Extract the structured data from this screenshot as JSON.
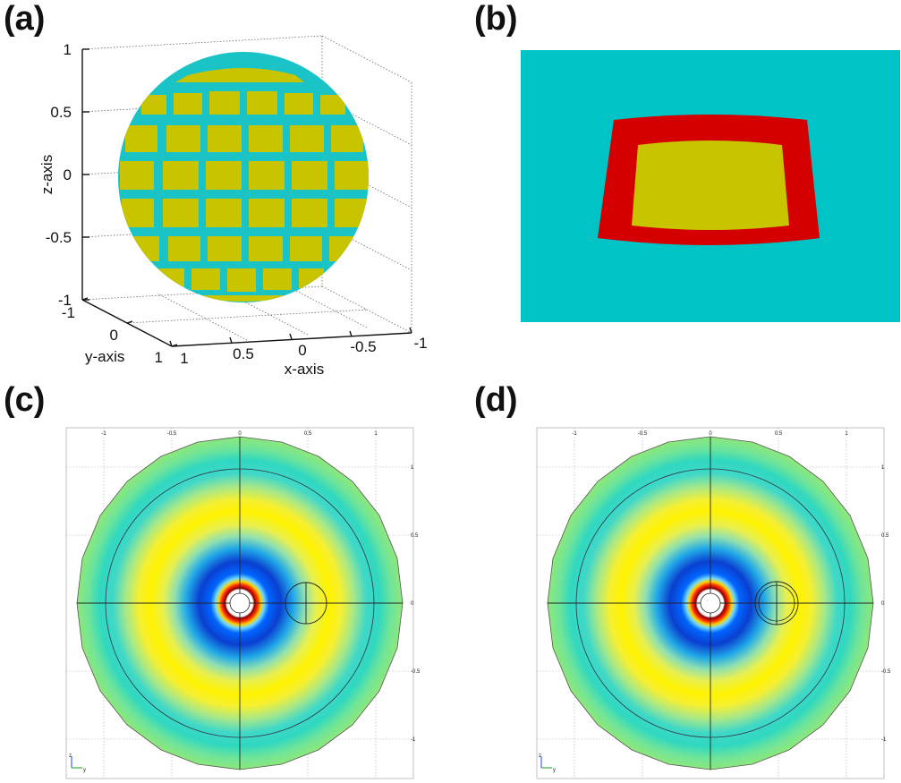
{
  "panels": {
    "a": {
      "label": "(a)",
      "z_axis": {
        "title": "z-axis",
        "ticks": [
          "1",
          "0.5",
          "0",
          "-0.5",
          "-1"
        ]
      },
      "y_axis": {
        "title": "y-axis",
        "ticks": [
          "-1",
          "0",
          "1"
        ]
      },
      "x_axis": {
        "title": "x-axis",
        "ticks": [
          "1",
          "0.5",
          "0",
          "-0.5",
          "-1"
        ]
      },
      "colors": {
        "surface": "#c8c400",
        "grid_band": "#19c3c6"
      }
    },
    "b": {
      "label": "(b)",
      "colors": {
        "background": "#00c3c6",
        "frame": "#d40000",
        "patch": "#c8c400"
      }
    },
    "c": {
      "label": "(c)",
      "top_ticks": [
        "-1",
        "-0.5",
        "0",
        "0.5",
        "1"
      ],
      "right_ticks": [
        "1",
        "0.5",
        "0",
        "-0.5",
        "-1"
      ],
      "triad": {
        "z": "z",
        "y": "y"
      }
    },
    "d": {
      "label": "(d)",
      "top_ticks": [
        "-1",
        "-0.5",
        "0",
        "0.5",
        "1"
      ],
      "right_ticks": [
        "1",
        "0.5",
        "0",
        "-0.5",
        "-1"
      ],
      "triad": {
        "z": "z",
        "y": "y"
      }
    }
  }
}
